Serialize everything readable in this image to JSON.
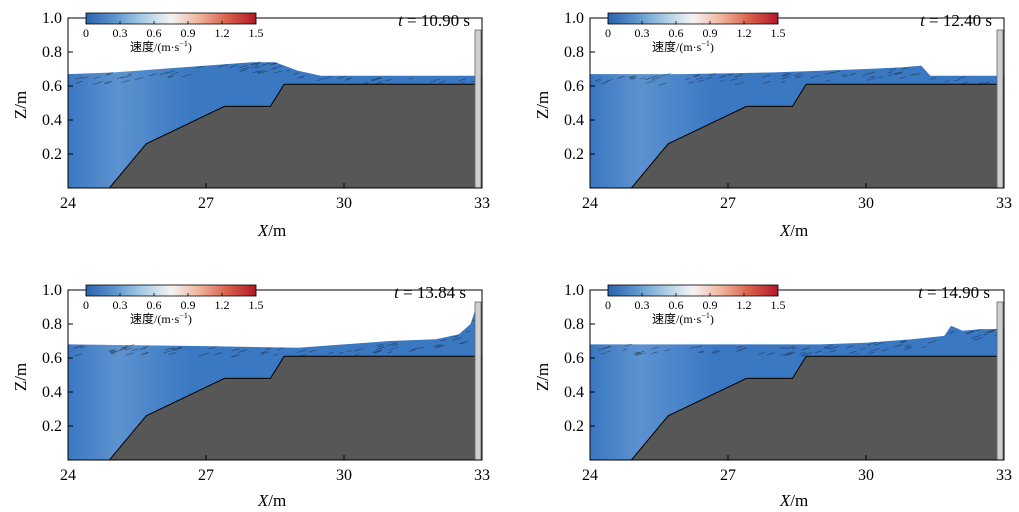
{
  "figure": {
    "colors": {
      "water": "#3a78c2",
      "water_light": "#8fb8e2",
      "bed": "#575757",
      "wall": "#cfcfcf",
      "arrow": "#111111",
      "crest": "#b03232"
    }
  },
  "colorbar": {
    "ticks": [
      "0",
      "0.3",
      "0.6",
      "0.9",
      "1.2",
      "1.5"
    ],
    "title_main": "速度/(m·s",
    "title_exp": "−1",
    "title_close": ")",
    "colormap": [
      "#2b63b0",
      "#5b94cd",
      "#a9cbe6",
      "#f4f4f4",
      "#f0b39b",
      "#d8604a",
      "#b2182b"
    ]
  },
  "chart_data": [
    {
      "type": "area",
      "time_label": "t = 10.90 s",
      "t_var": "t",
      "t_rest": " = 10.90 s",
      "xlabel_var": "X",
      "xlabel_unit": "/m",
      "ylabel": "Z/m",
      "xlim": [
        24,
        33
      ],
      "ylim": [
        0,
        1.0
      ],
      "xticks": [
        "24",
        "27",
        "30",
        "33"
      ],
      "yticks": [
        "0.2",
        "0.4",
        "0.6",
        "0.8",
        "1.0"
      ],
      "bed": {
        "x": [
          24,
          24.9,
          25.7,
          27.4,
          28.4,
          28.7,
          33
        ],
        "z": [
          0,
          0,
          0.26,
          0.48,
          0.48,
          0.61,
          0.61
        ]
      },
      "surface": {
        "x": [
          24,
          25,
          26,
          27,
          28,
          28.5,
          29,
          29.5,
          30,
          33
        ],
        "z": [
          0.67,
          0.68,
          0.7,
          0.72,
          0.74,
          0.74,
          0.69,
          0.66,
          0.66,
          0.66
        ]
      }
    },
    {
      "type": "area",
      "time_label": "t = 12.40 s",
      "t_var": "t",
      "t_rest": " = 12.40 s",
      "xlabel_var": "X",
      "xlabel_unit": "/m",
      "ylabel": "Z/m",
      "xlim": [
        24,
        33
      ],
      "ylim": [
        0,
        1.0
      ],
      "xticks": [
        "24",
        "27",
        "30",
        "33"
      ],
      "yticks": [
        "0.2",
        "0.4",
        "0.6",
        "0.8",
        "1.0"
      ],
      "bed": {
        "x": [
          24,
          24.9,
          25.7,
          27.4,
          28.4,
          28.7,
          33
        ],
        "z": [
          0,
          0,
          0.26,
          0.48,
          0.48,
          0.61,
          0.61
        ]
      },
      "surface": {
        "x": [
          24,
          26,
          28,
          29,
          30,
          30.8,
          31.2,
          31.4,
          33
        ],
        "z": [
          0.67,
          0.67,
          0.68,
          0.69,
          0.7,
          0.71,
          0.72,
          0.66,
          0.66
        ]
      }
    },
    {
      "type": "area",
      "time_label": "t = 13.84 s",
      "t_var": "t",
      "t_rest": " = 13.84 s",
      "xlabel_var": "X",
      "xlabel_unit": "/m",
      "ylabel": "Z/m",
      "xlim": [
        24,
        33
      ],
      "ylim": [
        0,
        1.0
      ],
      "xticks": [
        "24",
        "27",
        "30",
        "33"
      ],
      "yticks": [
        "0.2",
        "0.4",
        "0.6",
        "0.8",
        "1.0"
      ],
      "bed": {
        "x": [
          24,
          24.9,
          25.7,
          27.4,
          28.4,
          28.7,
          33
        ],
        "z": [
          0,
          0,
          0.26,
          0.48,
          0.48,
          0.61,
          0.61
        ]
      },
      "surface": {
        "x": [
          24,
          27,
          29,
          30,
          31,
          32,
          32.5,
          32.75,
          32.85,
          32.9
        ],
        "z": [
          0.68,
          0.67,
          0.66,
          0.68,
          0.7,
          0.71,
          0.74,
          0.8,
          0.88,
          0.92
        ]
      }
    },
    {
      "type": "area",
      "time_label": "t = 14.90 s",
      "t_var": "t",
      "t_rest": " = 14.90 s",
      "xlabel_var": "X",
      "xlabel_unit": "/m",
      "ylabel": "Z/m",
      "xlim": [
        24,
        33
      ],
      "ylim": [
        0,
        1.0
      ],
      "xticks": [
        "24",
        "27",
        "30",
        "33"
      ],
      "yticks": [
        "0.2",
        "0.4",
        "0.6",
        "0.8",
        "1.0"
      ],
      "bed": {
        "x": [
          24,
          24.9,
          25.7,
          27.4,
          28.4,
          28.7,
          33
        ],
        "z": [
          0,
          0,
          0.26,
          0.48,
          0.48,
          0.61,
          0.61
        ]
      },
      "surface": {
        "x": [
          24,
          27,
          29,
          30,
          31,
          31.7,
          31.85,
          32.1,
          32.5,
          33
        ],
        "z": [
          0.68,
          0.68,
          0.68,
          0.69,
          0.71,
          0.73,
          0.79,
          0.76,
          0.77,
          0.77
        ]
      }
    }
  ]
}
